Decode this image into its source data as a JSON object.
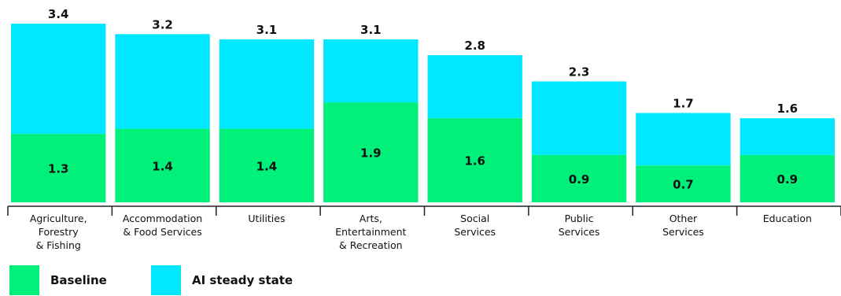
{
  "colors": {
    "baseline": "#00f07a",
    "ai": "#00e8ff",
    "axis": "#222222",
    "text": "#111111"
  },
  "legend": {
    "baseline": "Baseline",
    "ai": "AI steady state"
  },
  "chart_data": {
    "type": "bar",
    "stacked": true,
    "categories": [
      [
        "Agriculture,",
        "Forestry",
        "& Fishing"
      ],
      [
        "Accommodation",
        "& Food Services"
      ],
      [
        "Utilities"
      ],
      [
        "Arts,",
        "Entertainment",
        "& Recreation"
      ],
      [
        "Social",
        "Services"
      ],
      [
        "Public",
        "Services"
      ],
      [
        "Other",
        "Services"
      ],
      [
        "Education"
      ]
    ],
    "series": [
      {
        "name": "Baseline",
        "values": [
          1.3,
          1.4,
          1.4,
          1.9,
          1.6,
          0.9,
          0.7,
          0.9
        ]
      },
      {
        "name": "AI steady state",
        "totals": [
          3.4,
          3.2,
          3.1,
          3.1,
          2.8,
          2.3,
          1.7,
          1.6
        ]
      }
    ],
    "baseline_labels": [
      "1.3",
      "1.4",
      "1.4",
      "1.9",
      "1.6",
      "0.9",
      "0.7",
      "0.9"
    ],
    "total_labels": [
      "3.4",
      "3.2",
      "3.1",
      "3.1",
      "2.8",
      "2.3",
      "1.7",
      "1.6"
    ],
    "ylim": [
      0,
      3.4
    ],
    "grid": false,
    "legend_position": "bottom-left"
  }
}
